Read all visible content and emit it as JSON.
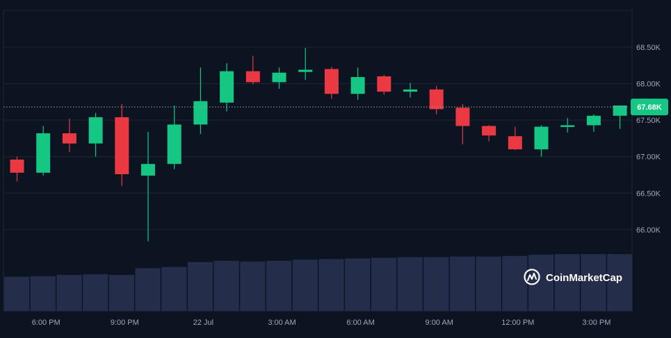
{
  "chart_data": {
    "type": "candlestick",
    "title": "",
    "xlabel": "",
    "ylabel": "",
    "ylim": [
      65500,
      68900
    ],
    "y_ticks": [
      {
        "value": 66000,
        "label": "66.00K"
      },
      {
        "value": 66500,
        "label": "66.50K"
      },
      {
        "value": 67000,
        "label": "67.00K"
      },
      {
        "value": 67500,
        "label": "67.50K"
      },
      {
        "value": 68000,
        "label": "68.00K"
      },
      {
        "value": 68500,
        "label": "68.50K"
      }
    ],
    "x_ticks": [
      {
        "index": 1,
        "label": "6:00 PM"
      },
      {
        "index": 4,
        "label": "9:00 PM"
      },
      {
        "index": 7,
        "label": "22 Jul"
      },
      {
        "index": 10,
        "label": "3:00 AM"
      },
      {
        "index": 13,
        "label": "6:00 AM"
      },
      {
        "index": 16,
        "label": "9:00 AM"
      },
      {
        "index": 19,
        "label": "12:00 PM"
      },
      {
        "index": 22,
        "label": "3:00 PM"
      }
    ],
    "current_price": {
      "value": 67680,
      "label": "67.68K"
    },
    "colors": {
      "up": "#16c784",
      "down": "#ea3943",
      "volume": "#242e4b",
      "grid": "#1e2638",
      "tag": "#16c784"
    },
    "candles": [
      {
        "open": 66960,
        "high": 67000,
        "low": 66660,
        "close": 66780
      },
      {
        "open": 66780,
        "high": 67420,
        "low": 66740,
        "close": 67320
      },
      {
        "open": 67320,
        "high": 67520,
        "low": 67060,
        "close": 67180
      },
      {
        "open": 67180,
        "high": 67600,
        "low": 67000,
        "close": 67540
      },
      {
        "open": 67540,
        "high": 67720,
        "low": 66600,
        "close": 66760
      },
      {
        "open": 66740,
        "high": 67340,
        "low": 65840,
        "close": 66900
      },
      {
        "open": 66900,
        "high": 67700,
        "low": 66830,
        "close": 67440
      },
      {
        "open": 67440,
        "high": 68220,
        "low": 67310,
        "close": 67760
      },
      {
        "open": 67740,
        "high": 68280,
        "low": 67620,
        "close": 68170
      },
      {
        "open": 68170,
        "high": 68380,
        "low": 67990,
        "close": 68020
      },
      {
        "open": 68020,
        "high": 68220,
        "low": 67930,
        "close": 68150
      },
      {
        "open": 68160,
        "high": 68490,
        "low": 68050,
        "close": 68190
      },
      {
        "open": 68200,
        "high": 68230,
        "low": 67790,
        "close": 67860
      },
      {
        "open": 67860,
        "high": 68220,
        "low": 67780,
        "close": 68090
      },
      {
        "open": 68100,
        "high": 68120,
        "low": 67850,
        "close": 67890
      },
      {
        "open": 67890,
        "high": 68010,
        "low": 67810,
        "close": 67920
      },
      {
        "open": 67920,
        "high": 67970,
        "low": 67580,
        "close": 67650
      },
      {
        "open": 67670,
        "high": 67720,
        "low": 67170,
        "close": 67420
      },
      {
        "open": 67420,
        "high": 67430,
        "low": 67210,
        "close": 67290
      },
      {
        "open": 67280,
        "high": 67410,
        "low": 67090,
        "close": 67100
      },
      {
        "open": 67100,
        "high": 67430,
        "low": 67000,
        "close": 67410
      },
      {
        "open": 67410,
        "high": 67530,
        "low": 67330,
        "close": 67430
      },
      {
        "open": 67430,
        "high": 67580,
        "low": 67340,
        "close": 67560
      },
      {
        "open": 67560,
        "high": 67700,
        "low": 67380,
        "close": 67700
      }
    ],
    "volume": [
      0.56,
      0.57,
      0.59,
      0.6,
      0.59,
      0.7,
      0.72,
      0.8,
      0.82,
      0.81,
      0.82,
      0.84,
      0.85,
      0.86,
      0.87,
      0.88,
      0.88,
      0.89,
      0.89,
      0.9,
      0.92,
      0.93,
      0.93,
      0.93
    ],
    "brand": {
      "name": "CoinMarketCap"
    }
  }
}
